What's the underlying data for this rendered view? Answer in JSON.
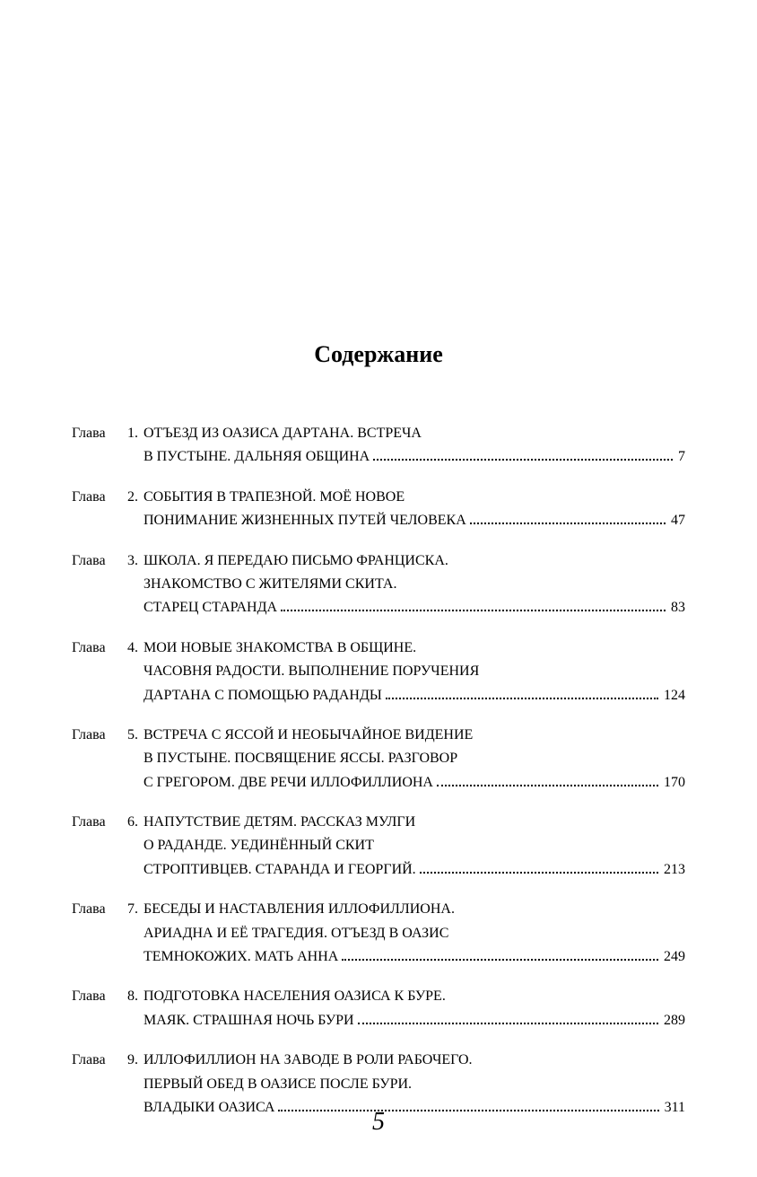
{
  "title": "Содержание",
  "chapter_label": "Глава",
  "footer_page_number": "5",
  "entries": [
    {
      "num": "1.",
      "lines": [
        "ОТЪЕЗД ИЗ ОАЗИСА ДАРТАНА. ВСТРЕЧА"
      ],
      "last_text": "В ПУСТЫНЕ. ДАЛЬНЯЯ ОБЩИНА",
      "page": "7"
    },
    {
      "num": "2.",
      "lines": [
        "СОБЫТИЯ В ТРАПЕЗНОЙ. МОЁ НОВОЕ"
      ],
      "last_text": "ПОНИМАНИЕ ЖИЗНЕННЫХ ПУТЕЙ ЧЕЛОВЕКА",
      "page": "47"
    },
    {
      "num": "3.",
      "lines": [
        "ШКОЛА. Я ПЕРЕДАЮ ПИСЬМО ФРАНЦИСКА.",
        "ЗНАКОМСТВО С ЖИТЕЛЯМИ СКИТА."
      ],
      "last_text": "СТАРЕЦ СТАРАНДА",
      "page": "83"
    },
    {
      "num": "4.",
      "lines": [
        "МОИ НОВЫЕ ЗНАКОМСТВА В ОБЩИНЕ.",
        "ЧАСОВНЯ РАДОСТИ. ВЫПОЛНЕНИЕ ПОРУЧЕНИЯ"
      ],
      "last_text": "ДАРТАНА С ПОМОЩЬЮ РАДАНДЫ",
      "page": "124"
    },
    {
      "num": "5.",
      "lines": [
        "ВСТРЕЧА С ЯССОЙ И НЕОБЫЧАЙНОЕ ВИДЕНИЕ",
        "В ПУСТЫНЕ. ПОСВЯЩЕНИЕ ЯССЫ. РАЗГОВОР"
      ],
      "last_text": "С ГРЕГОРОМ. ДВЕ РЕЧИ ИЛЛОФИЛЛИОНА",
      "page": "170"
    },
    {
      "num": "6.",
      "lines": [
        "НАПУТСТВИЕ ДЕТЯМ. РАССКАЗ МУЛГИ",
        "О РАДАНДЕ. УЕДИНЁННЫЙ СКИТ"
      ],
      "last_text": "СТРОПТИВЦЕВ. СТАРАНДА И ГЕОРГИЙ.",
      "page": "213"
    },
    {
      "num": "7.",
      "lines": [
        "БЕСЕДЫ И НАСТАВЛЕНИЯ ИЛЛОФИЛЛИОНА.",
        "АРИАДНА И ЕЁ ТРАГЕДИЯ. ОТЪЕЗД В ОАЗИС"
      ],
      "last_text": "ТЕМНОКОЖИХ. МАТЬ АННА",
      "page": "249"
    },
    {
      "num": "8.",
      "lines": [
        "ПОДГОТОВКА НАСЕЛЕНИЯ ОАЗИСА К БУРЕ."
      ],
      "last_text": "МАЯК. СТРАШНАЯ НОЧЬ БУРИ",
      "page": "289"
    },
    {
      "num": "9.",
      "lines": [
        "ИЛЛОФИЛЛИОН НА ЗАВОДЕ В РОЛИ РАБОЧЕГО.",
        "ПЕРВЫЙ ОБЕД В ОАЗИСЕ ПОСЛЕ БУРИ."
      ],
      "last_text": "ВЛАДЫКИ ОАЗИСА",
      "page": "311"
    }
  ]
}
